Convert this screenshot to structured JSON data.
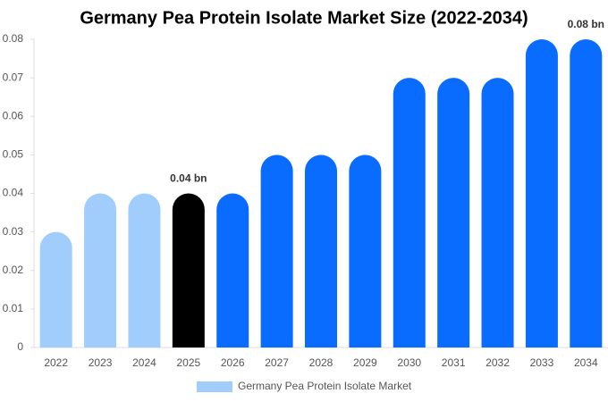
{
  "chart_data": {
    "type": "bar",
    "title": "Germany Pea Protein Isolate Market Size (2022-2034)",
    "categories": [
      "2022",
      "2023",
      "2024",
      "2025",
      "2026",
      "2027",
      "2028",
      "2029",
      "2030",
      "2031",
      "2032",
      "2033",
      "2034"
    ],
    "series": [
      {
        "name": "Germany Pea Protein Isolate Market",
        "color": "#a0cdfc",
        "colors": [
          "#a0cdfc",
          "#a0cdfc",
          "#a0cdfc",
          "#000000",
          "#0a6cff",
          "#0a6cff",
          "#0a6cff",
          "#0a6cff",
          "#0a6cff",
          "#0a6cff",
          "#0a6cff",
          "#0a6cff",
          "#0a6cff"
        ],
        "values": [
          0.03,
          0.04,
          0.04,
          0.04,
          0.04,
          0.05,
          0.05,
          0.05,
          0.07,
          0.07,
          0.07,
          0.08,
          0.08
        ],
        "value_labels": [
          null,
          null,
          null,
          "0.04 bn",
          null,
          null,
          null,
          null,
          null,
          null,
          null,
          null,
          "0.08 bn"
        ]
      }
    ],
    "ylim": [
      0,
      0.08
    ],
    "yticks": [
      0,
      0.01,
      0.02,
      0.03,
      0.04,
      0.05,
      0.06,
      0.07,
      0.08
    ],
    "grid": false
  }
}
